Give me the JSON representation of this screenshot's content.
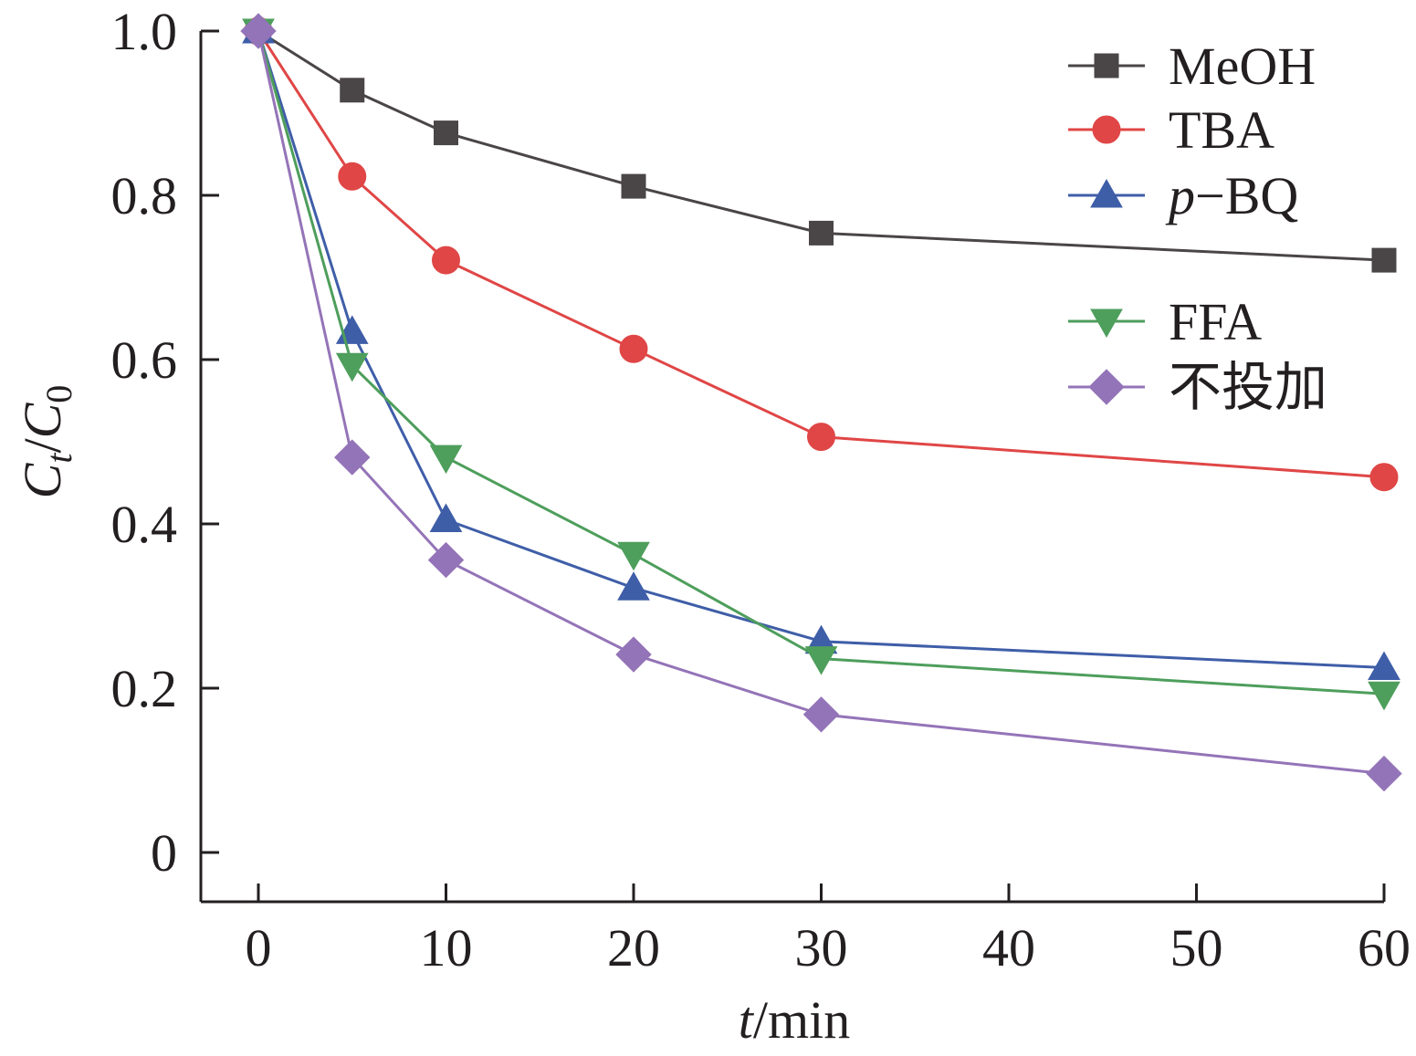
{
  "chart_data": {
    "type": "line",
    "title": "",
    "xlabel": {
      "var": "t",
      "unit": "/min"
    },
    "ylabel": {
      "num": "C",
      "num_sub": "t",
      "sep": "/",
      "den": "C",
      "den_sub": "0"
    },
    "xlim": [
      -3,
      60
    ],
    "ylim": [
      -0.06,
      1.0
    ],
    "x_ticks": [
      0,
      10,
      20,
      30,
      40,
      50,
      60
    ],
    "x_tick_labels": [
      "0",
      "10",
      "20",
      "30",
      "40",
      "50",
      "60"
    ],
    "y_ticks": [
      0,
      0.2,
      0.4,
      0.6,
      0.8,
      1.0
    ],
    "y_tick_labels": [
      "0",
      "0.2",
      "0.4",
      "0.6",
      "0.8",
      "1.0"
    ],
    "grid": false,
    "legend_position": "top-right",
    "x": [
      0,
      5,
      10,
      20,
      30,
      60
    ],
    "series": [
      {
        "name": "MeOH",
        "color": "#4a4546",
        "marker": "square",
        "values": [
          1.0,
          0.928,
          0.876,
          0.811,
          0.754,
          0.721
        ]
      },
      {
        "name": "TBA",
        "color": "#e04646",
        "marker": "circle",
        "values": [
          1.0,
          0.823,
          0.721,
          0.613,
          0.506,
          0.457
        ]
      },
      {
        "name": "p−BQ",
        "name_italic_prefix": "p",
        "name_rest": "−BQ",
        "color": "#3f5ea8",
        "marker": "triangle-up",
        "values": [
          1.0,
          0.634,
          0.405,
          0.322,
          0.257,
          0.225
        ]
      },
      {
        "name": "FFA",
        "color": "#4e9e5c",
        "marker": "triangle-down",
        "values": [
          1.0,
          0.593,
          0.481,
          0.363,
          0.236,
          0.193
        ]
      },
      {
        "name": "不投加",
        "color": "#9474b8",
        "marker": "diamond",
        "values": [
          1.0,
          0.481,
          0.356,
          0.241,
          0.168,
          0.096
        ]
      }
    ]
  }
}
